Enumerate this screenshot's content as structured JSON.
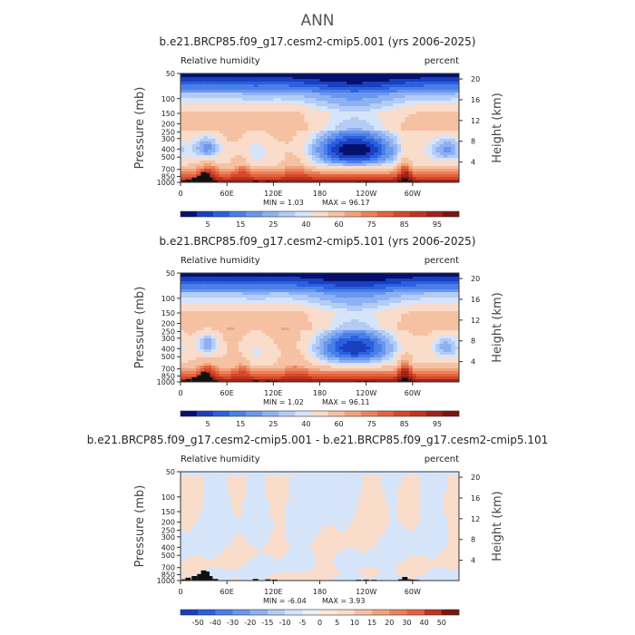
{
  "figure": {
    "title": "ANN"
  },
  "palette": {
    "abs": [
      "#05106e",
      "#1a3fbf",
      "#2a5fe0",
      "#4a7fe8",
      "#6a97ee",
      "#8eb1f2",
      "#b3ccf6",
      "#d6e4fa",
      "#f9dcca",
      "#f6c1a2",
      "#f2a37c",
      "#ec8258",
      "#e4633e",
      "#d6482a",
      "#c23420",
      "#a0221a",
      "#7a1510"
    ],
    "diff": [
      "#1a3fbf",
      "#2a5fe0",
      "#4a7fe8",
      "#6a97ee",
      "#8eb1f2",
      "#b3ccf6",
      "#d6e4fa",
      "#e8f0fc",
      "#fde7d6",
      "#f9dcca",
      "#f6c1a2",
      "#f2a37c",
      "#ec8258",
      "#e4633e",
      "#c23420",
      "#7a1510"
    ],
    "terrain": "#111111",
    "frame": "#333333"
  },
  "chart_data": [
    {
      "type": "heatmap",
      "title": "b.e21.BRCP85.f09_g17.cesm2-cmip5.001 (yrs 2006-2025)",
      "left_label": "Relative humidity",
      "right_label": "percent",
      "ylabel": "Pressure (mb)",
      "y2label": "Height (km)",
      "xticks": [
        "0",
        "60E",
        "120E",
        "180",
        "120W",
        "60W"
      ],
      "xtick_lon": [
        0,
        60,
        120,
        180,
        240,
        300
      ],
      "yticks": [
        "50",
        "100",
        "150",
        "200",
        "250",
        "300",
        "400",
        "500",
        "700",
        "850",
        "1000"
      ],
      "ytick_p": [
        50,
        100,
        150,
        200,
        250,
        300,
        400,
        500,
        700,
        850,
        1000
      ],
      "y2ticks": [
        "20",
        "16",
        "12",
        "8",
        "4"
      ],
      "y2tick_km": [
        20,
        16,
        12,
        8,
        4
      ],
      "stats": {
        "min_label": "MIN =",
        "min": "1.03",
        "max_label": "MAX =",
        "max": "96.17"
      },
      "colorbar_labels": [
        "5",
        "15",
        "25",
        "40",
        "60",
        "75",
        "85",
        "95"
      ],
      "mode": "abs",
      "features": [
        {
          "lon": 225,
          "p": 400,
          "amp": -55,
          "lw": 45,
          "pw": 170
        },
        {
          "lon": 35,
          "p": 390,
          "amp": -35,
          "lw": 14,
          "pw": 110
        },
        {
          "lon": 345,
          "p": 400,
          "amp": -30,
          "lw": 18,
          "pw": 120
        },
        {
          "lon": 95,
          "p": 420,
          "amp": -18,
          "lw": 18,
          "pw": 150
        },
        {
          "lon": 290,
          "p": 700,
          "amp": 22,
          "lw": 6,
          "pw": 200
        },
        {
          "lon": 80,
          "p": 650,
          "amp": 12,
          "lw": 8,
          "pw": 160
        },
        {
          "lon": 150,
          "p": 600,
          "amp": 10,
          "lw": 12,
          "pw": 200
        },
        {
          "lon": 35,
          "p": 750,
          "amp": 15,
          "lw": 8,
          "pw": 200
        }
      ],
      "terrain": [
        {
          "lon": 5,
          "h": 8
        },
        {
          "lon": 10,
          "h": 18
        },
        {
          "lon": 18,
          "h": 28
        },
        {
          "lon": 25,
          "h": 40
        },
        {
          "lon": 30,
          "h": 62
        },
        {
          "lon": 34,
          "h": 55
        },
        {
          "lon": 38,
          "h": 28
        },
        {
          "lon": 45,
          "h": 10
        },
        {
          "lon": 97,
          "h": 10
        },
        {
          "lon": 113,
          "h": 8
        },
        {
          "lon": 122,
          "h": 6
        },
        {
          "lon": 230,
          "h": 5
        },
        {
          "lon": 240,
          "h": 6
        },
        {
          "lon": 250,
          "h": 5
        },
        {
          "lon": 285,
          "h": 8
        },
        {
          "lon": 290,
          "h": 22
        },
        {
          "lon": 295,
          "h": 8
        },
        {
          "lon": 300,
          "h": 6
        },
        {
          "lon": 305,
          "h": 5
        }
      ]
    },
    {
      "type": "heatmap",
      "title": "b.e21.BRCP85.f09_g17.cesm2-cmip5.101 (yrs 2006-2025)",
      "left_label": "Relative humidity",
      "right_label": "percent",
      "ylabel": "Pressure (mb)",
      "y2label": "Height (km)",
      "xticks": [
        "0",
        "60E",
        "120E",
        "180",
        "120W",
        "60W"
      ],
      "xtick_lon": [
        0,
        60,
        120,
        180,
        240,
        300
      ],
      "yticks": [
        "50",
        "100",
        "150",
        "200",
        "250",
        "300",
        "400",
        "500",
        "700",
        "850",
        "1000"
      ],
      "ytick_p": [
        50,
        100,
        150,
        200,
        250,
        300,
        400,
        500,
        700,
        850,
        1000
      ],
      "y2ticks": [
        "20",
        "16",
        "12",
        "8",
        "4"
      ],
      "y2tick_km": [
        20,
        16,
        12,
        8,
        4
      ],
      "stats": {
        "min_label": "MIN =",
        "min": "1.02",
        "max_label": "MAX =",
        "max": "96.11"
      },
      "colorbar_labels": [
        "5",
        "15",
        "25",
        "40",
        "60",
        "75",
        "85",
        "95"
      ],
      "mode": "abs",
      "features": [
        {
          "lon": 225,
          "p": 380,
          "amp": -50,
          "lw": 42,
          "pw": 160
        },
        {
          "lon": 35,
          "p": 360,
          "amp": -32,
          "lw": 12,
          "pw": 100
        },
        {
          "lon": 345,
          "p": 380,
          "amp": -28,
          "lw": 16,
          "pw": 110
        },
        {
          "lon": 95,
          "p": 420,
          "amp": -16,
          "lw": 18,
          "pw": 150
        },
        {
          "lon": 290,
          "p": 700,
          "amp": 22,
          "lw": 6,
          "pw": 200
        },
        {
          "lon": 80,
          "p": 650,
          "amp": 12,
          "lw": 8,
          "pw": 160
        },
        {
          "lon": 150,
          "p": 600,
          "amp": 10,
          "lw": 12,
          "pw": 200
        },
        {
          "lon": 35,
          "p": 750,
          "amp": 15,
          "lw": 8,
          "pw": 200
        }
      ],
      "terrain": [
        {
          "lon": 5,
          "h": 8
        },
        {
          "lon": 10,
          "h": 18
        },
        {
          "lon": 18,
          "h": 28
        },
        {
          "lon": 25,
          "h": 40
        },
        {
          "lon": 30,
          "h": 62
        },
        {
          "lon": 34,
          "h": 55
        },
        {
          "lon": 38,
          "h": 28
        },
        {
          "lon": 45,
          "h": 10
        },
        {
          "lon": 97,
          "h": 10
        },
        {
          "lon": 113,
          "h": 8
        },
        {
          "lon": 122,
          "h": 6
        },
        {
          "lon": 230,
          "h": 5
        },
        {
          "lon": 240,
          "h": 6
        },
        {
          "lon": 250,
          "h": 5
        },
        {
          "lon": 285,
          "h": 8
        },
        {
          "lon": 290,
          "h": 22
        },
        {
          "lon": 295,
          "h": 8
        },
        {
          "lon": 300,
          "h": 6
        },
        {
          "lon": 305,
          "h": 5
        }
      ]
    },
    {
      "type": "heatmap",
      "title": "b.e21.BRCP85.f09_g17.cesm2-cmip5.001 - b.e21.BRCP85.f09_g17.cesm2-cmip5.101",
      "left_label": "Relative humidity",
      "right_label": "percent",
      "ylabel": "Pressure (mb)",
      "y2label": "Height (km)",
      "xticks": [
        "0",
        "60E",
        "120E",
        "180",
        "120W",
        "60W"
      ],
      "xtick_lon": [
        0,
        60,
        120,
        180,
        240,
        300
      ],
      "yticks": [
        "50",
        "100",
        "150",
        "200",
        "250",
        "300",
        "400",
        "500",
        "700",
        "850",
        "1000"
      ],
      "ytick_p": [
        50,
        100,
        150,
        200,
        250,
        300,
        400,
        500,
        700,
        850,
        1000
      ],
      "y2ticks": [
        "20",
        "16",
        "12",
        "8",
        "4"
      ],
      "y2tick_km": [
        20,
        16,
        12,
        8,
        4
      ],
      "stats": {
        "min_label": "MIN =",
        "min": "-6.04",
        "max_label": "MAX =",
        "max": "3.93"
      },
      "colorbar_labels": [
        "-50",
        "-40",
        "-30",
        "-20",
        "-15",
        "-10",
        "-5",
        "0",
        "5",
        "10",
        "15",
        "20",
        "30",
        "40",
        "50"
      ],
      "mode": "diff",
      "features": [],
      "terrain": [
        {
          "lon": 5,
          "h": 8
        },
        {
          "lon": 10,
          "h": 18
        },
        {
          "lon": 18,
          "h": 28
        },
        {
          "lon": 25,
          "h": 40
        },
        {
          "lon": 30,
          "h": 62
        },
        {
          "lon": 34,
          "h": 55
        },
        {
          "lon": 38,
          "h": 28
        },
        {
          "lon": 45,
          "h": 10
        },
        {
          "lon": 97,
          "h": 10
        },
        {
          "lon": 113,
          "h": 8
        },
        {
          "lon": 122,
          "h": 6
        },
        {
          "lon": 230,
          "h": 5
        },
        {
          "lon": 240,
          "h": 6
        },
        {
          "lon": 250,
          "h": 5
        },
        {
          "lon": 285,
          "h": 8
        },
        {
          "lon": 290,
          "h": 22
        },
        {
          "lon": 295,
          "h": 8
        },
        {
          "lon": 300,
          "h": 6
        },
        {
          "lon": 305,
          "h": 5
        }
      ]
    }
  ]
}
